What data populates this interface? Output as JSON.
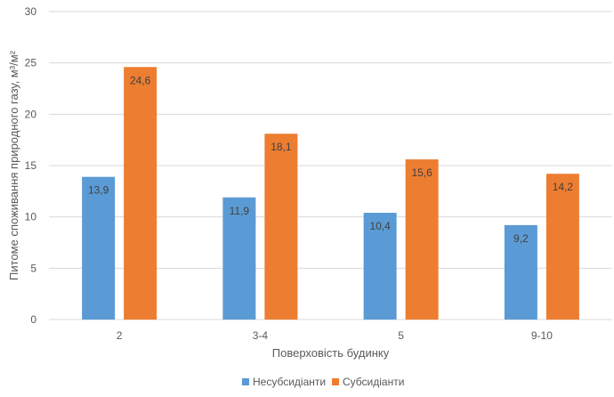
{
  "chart_data": {
    "type": "bar",
    "categories": [
      "2",
      "3-4",
      "5",
      "9-10"
    ],
    "series": [
      {
        "name": "Несубсидіанти",
        "values": [
          13.9,
          11.9,
          10.4,
          9.2
        ],
        "labels": [
          "13,9",
          "11,9",
          "10,4",
          "9,2"
        ],
        "color": "#5b9bd5"
      },
      {
        "name": "Субсидіанти",
        "values": [
          24.6,
          18.1,
          15.6,
          14.2
        ],
        "labels": [
          "24,6",
          "18,1",
          "15,6",
          "14,2"
        ],
        "color": "#ed7d31"
      }
    ],
    "title": "",
    "xlabel": "Поверховість будинку",
    "ylabel": "Питоме споживання природного газу, м³/м²",
    "ylim": [
      0,
      30
    ],
    "yticks": [
      0,
      5,
      10,
      15,
      20,
      25,
      30
    ],
    "grid": true,
    "legend_position": "bottom",
    "gridline_color": "#d9d9d9"
  }
}
